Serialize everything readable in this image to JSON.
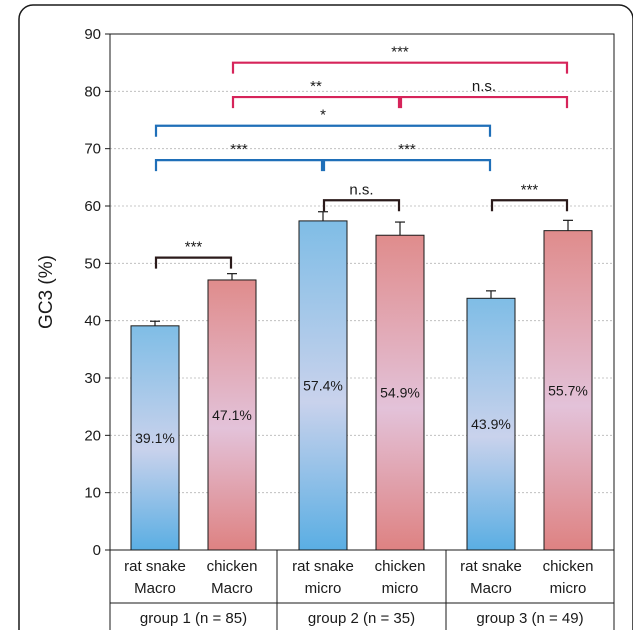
{
  "chart_data": {
    "type": "bar",
    "ylabel": "GC3 (%)",
    "ylim": [
      0,
      90
    ],
    "yticks": [
      0,
      10,
      20,
      30,
      40,
      50,
      60,
      70,
      80,
      90
    ],
    "grid": true,
    "bars": [
      {
        "line1": "rat snake",
        "line2": "Macro",
        "value": 39.1,
        "error": 0.8,
        "label": "39.1%",
        "kind": "rat snake"
      },
      {
        "line1": "chicken",
        "line2": "Macro",
        "value": 47.1,
        "error": 1.1,
        "label": "47.1%",
        "kind": "chicken"
      },
      {
        "line1": "rat snake",
        "line2": "micro",
        "value": 57.4,
        "error": 1.6,
        "label": "57.4%",
        "kind": "rat snake"
      },
      {
        "line1": "chicken",
        "line2": "micro",
        "value": 54.9,
        "error": 2.3,
        "label": "54.9%",
        "kind": "chicken"
      },
      {
        "line1": "rat snake",
        "line2": "Macro",
        "value": 43.9,
        "error": 1.3,
        "label": "43.9%",
        "kind": "rat snake"
      },
      {
        "line1": "chicken",
        "line2": "micro",
        "value": 55.7,
        "error": 1.8,
        "label": "55.7%",
        "kind": "chicken"
      }
    ],
    "groups": [
      {
        "label": "group 1 (n = 85)",
        "bars": [
          0,
          1
        ]
      },
      {
        "label": "group 2 (n = 35)",
        "bars": [
          2,
          3
        ]
      },
      {
        "label": "group 3 (n = 49)",
        "bars": [
          4,
          5
        ]
      }
    ],
    "comparisons": [
      {
        "from": 0,
        "to": 1,
        "y": 51,
        "label": "***",
        "color": "#2b1b1b"
      },
      {
        "from": 2,
        "to": 3,
        "y": 61,
        "label": "n.s.",
        "color": "#2b1b1b"
      },
      {
        "from": 4,
        "to": 5,
        "y": 61,
        "label": "***",
        "color": "#2b1b1b"
      },
      {
        "from": 0,
        "to": 2,
        "y": 68,
        "label": "***",
        "color": "#1f6fb8"
      },
      {
        "from": 2,
        "to": 4,
        "y": 68,
        "label": "***",
        "color": "#1f6fb8"
      },
      {
        "from": 0,
        "to": 4,
        "y": 74,
        "label": "*",
        "color": "#1f6fb8"
      },
      {
        "from": 1,
        "to": 3,
        "y": 79,
        "label": "**",
        "color": "#d6245a"
      },
      {
        "from": 3,
        "to": 5,
        "y": 79,
        "label": "n.s.",
        "color": "#d6245a"
      },
      {
        "from": 1,
        "to": 5,
        "y": 85,
        "label": "***",
        "color": "#d6245a"
      }
    ]
  },
  "colors": {
    "rat_snake_top": "#7fbde6",
    "rat_snake_mid": "#c9d2ec",
    "rat_snake_bottom": "#5aaee3",
    "chicken_top": "#e08c8c",
    "chicken_mid": "#e3c2d9",
    "chicken_bottom": "#de8282",
    "grid": "#b5b5b5",
    "axis": "#1a1a1a"
  }
}
